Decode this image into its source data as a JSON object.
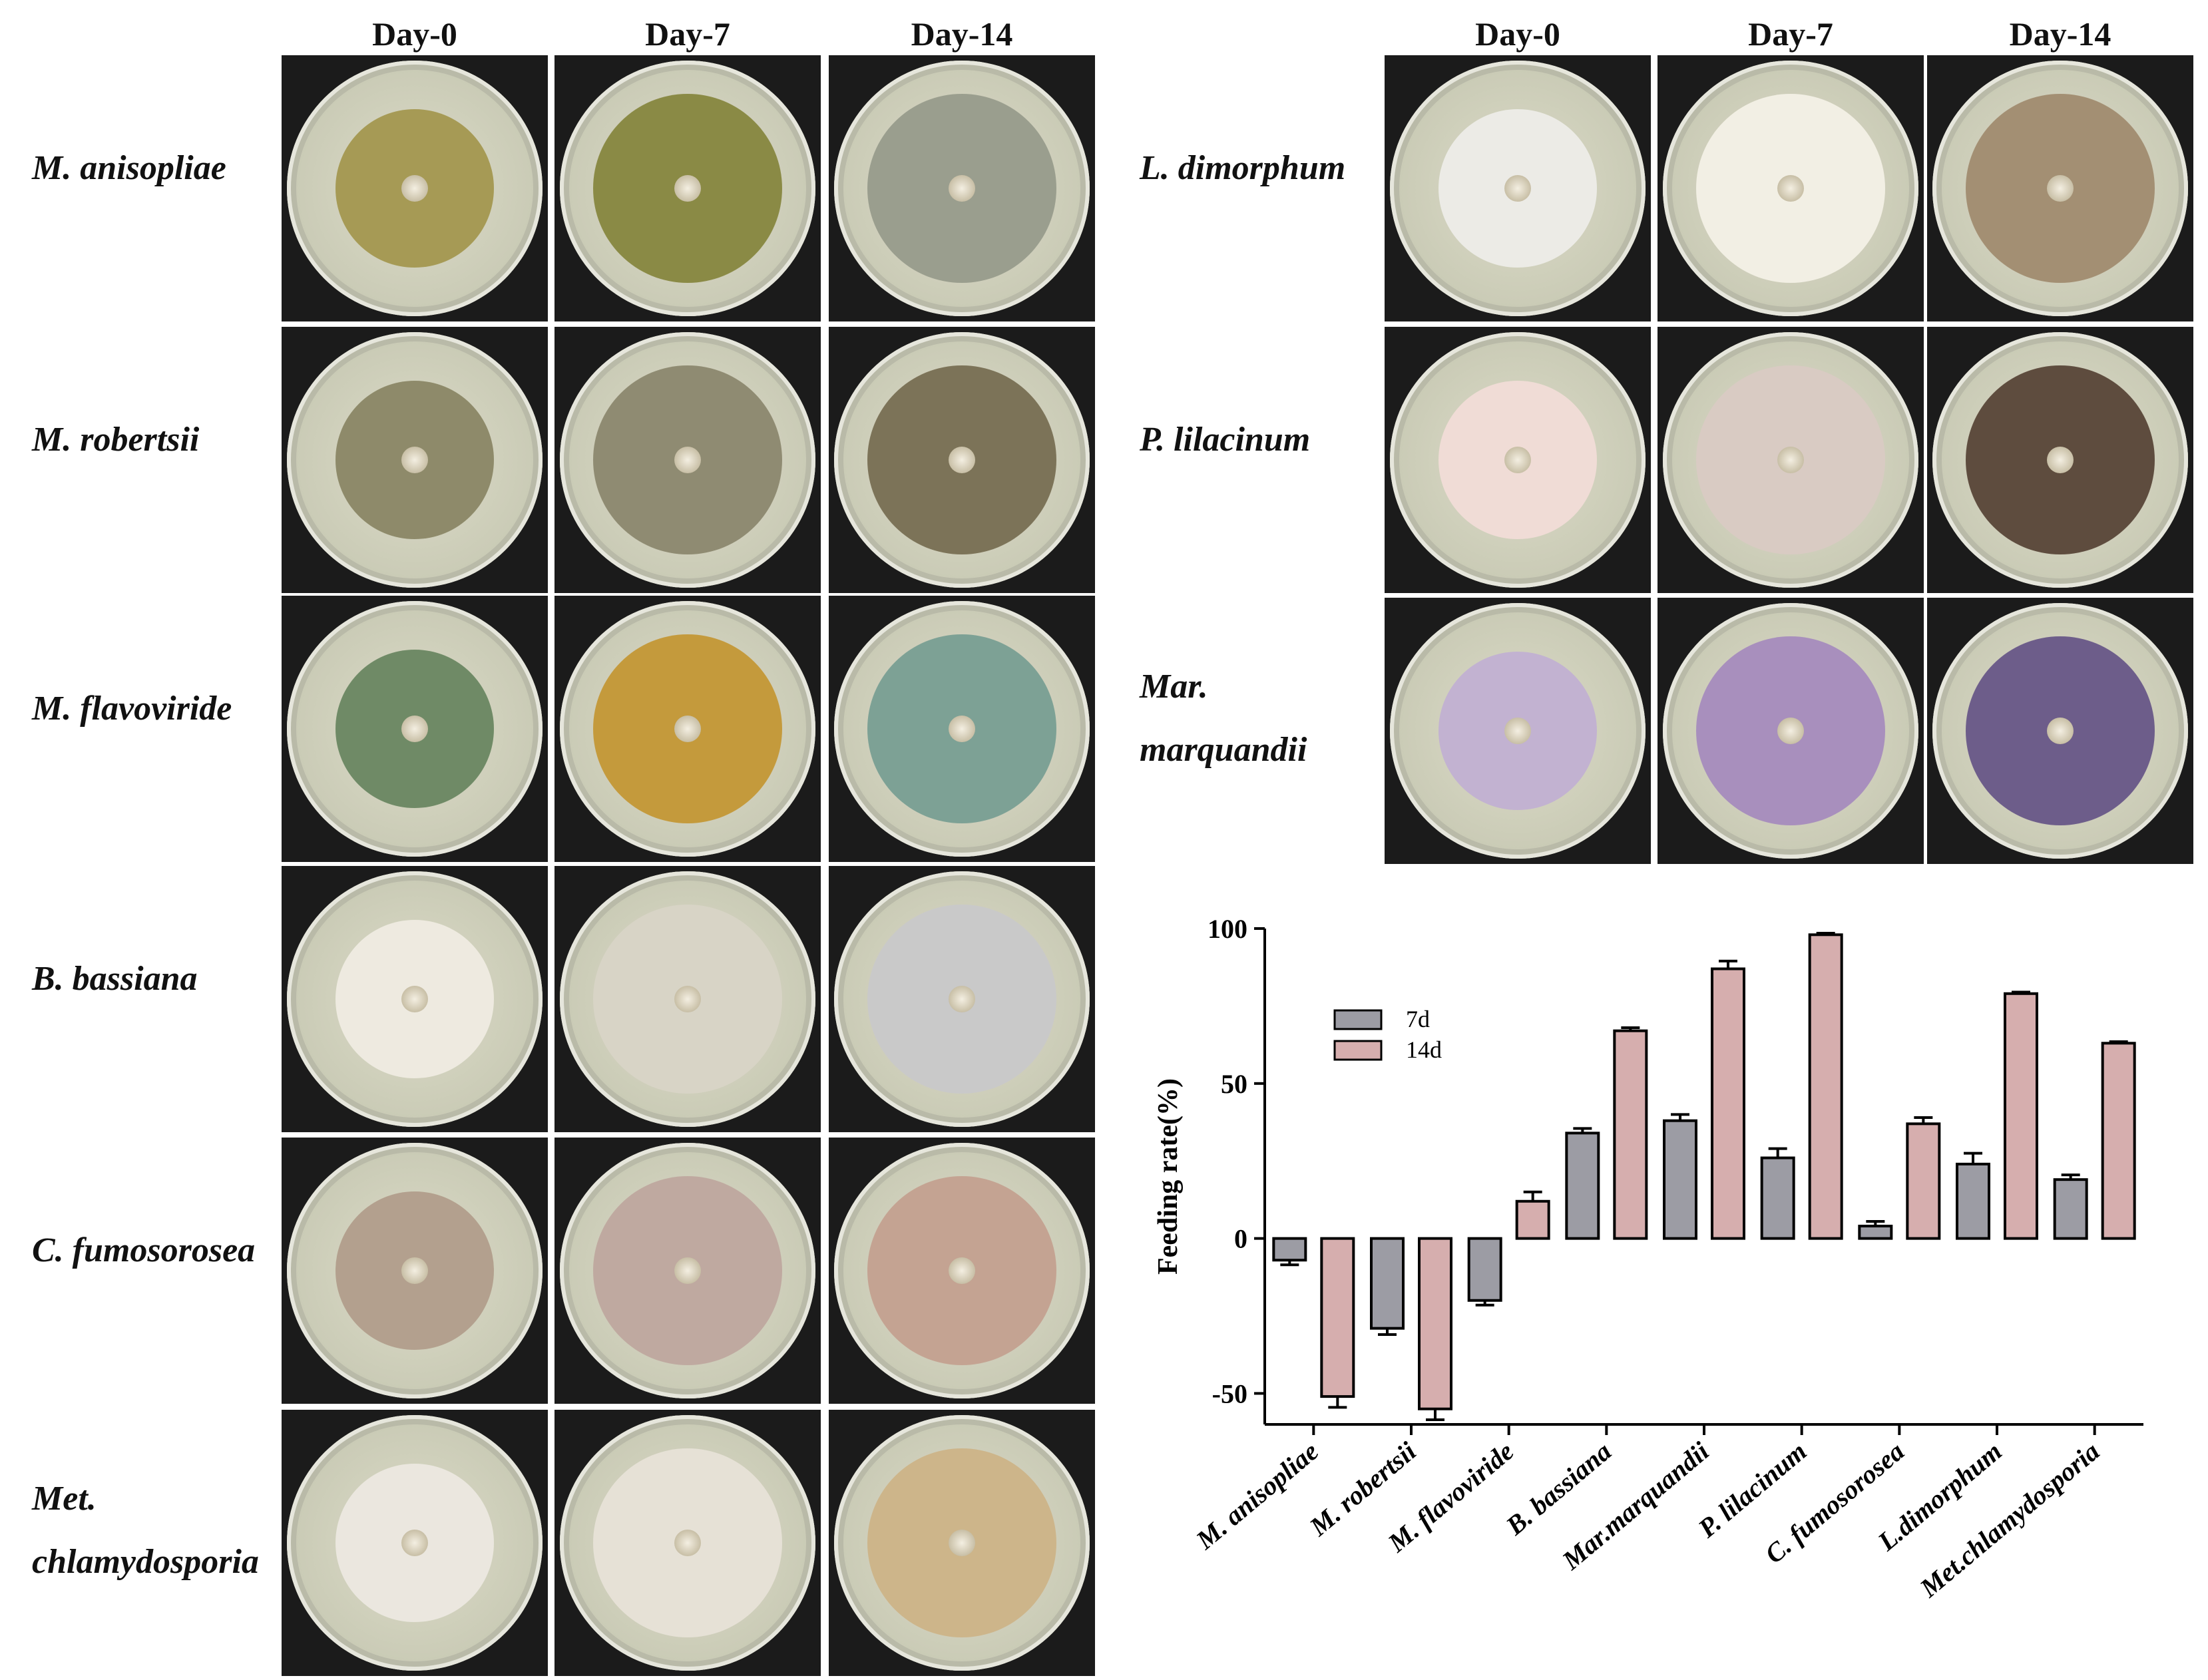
{
  "left_panel": {
    "column_headers": [
      "Day-0",
      "Day-7",
      "Day-14"
    ],
    "rows": [
      {
        "label": "M. anisopliae",
        "colors": [
          "#a69a55",
          "#8a8a45",
          "#9a9e8e"
        ]
      },
      {
        "label": "M. robertsii",
        "colors": [
          "#8e8a6a",
          "#8f8b72",
          "#7c7358"
        ]
      },
      {
        "label": "M. flavoviride",
        "colors": [
          "#6f8a66",
          "#c49a3c",
          "#7da195"
        ]
      },
      {
        "label": "B. bassiana",
        "colors": [
          "#eeeae0",
          "#d8d4c6",
          "#c9c9c9"
        ]
      },
      {
        "label": "C. fumosorosea",
        "colors": [
          "#b3a08e",
          "#bfa9a0",
          "#c4a392"
        ]
      },
      {
        "label_lines": [
          "Met.",
          "chlamydosporia"
        ],
        "colors": [
          "#ebe7df",
          "#e6e1d6",
          "#cdb58a"
        ]
      }
    ]
  },
  "right_panel": {
    "column_headers": [
      "Day-0",
      "Day-7",
      "Day-14"
    ],
    "rows": [
      {
        "label": "L. dimorphum",
        "colors": [
          "#ecebe6",
          "#f2efe4",
          "#a38f73"
        ]
      },
      {
        "label": "P. lilacinum",
        "colors": [
          "#f0dcd6",
          "#d9cbc3",
          "#5e4c3e"
        ]
      },
      {
        "label_lines": [
          "Mar.",
          "marquandii"
        ],
        "colors": [
          "#c2b2d1",
          "#a88fbd",
          "#6d5d8a"
        ]
      }
    ]
  },
  "chart_data": {
    "type": "bar",
    "categories": [
      "M. anisopliae",
      "M. robertsii",
      "M. flavoviride",
      "B. bassiana",
      "Mar.marquandii",
      "P. lilacinum",
      "C. fumosorosea",
      "L.dimorphum",
      "Met.chlamydosporia"
    ],
    "series": [
      {
        "name": "7d",
        "color": "#9c9ca4",
        "values": [
          -7,
          -29,
          -20,
          34,
          38,
          26,
          4,
          24,
          19
        ],
        "errors": [
          1.5,
          2,
          1.5,
          1.5,
          2,
          3,
          1.5,
          3.5,
          1.5
        ]
      },
      {
        "name": "14d",
        "color": "#d6aeae",
        "values": [
          -51,
          -55,
          12,
          67,
          87,
          98,
          37,
          79,
          63
        ],
        "errors": [
          3.5,
          3.5,
          3,
          1,
          2.5,
          0.5,
          2,
          0.5,
          0.5
        ]
      }
    ],
    "ylabel": "Feeding rate(%)",
    "xlabel": "",
    "ylim": [
      -60,
      100
    ],
    "yticks": [
      -50,
      0,
      50,
      100
    ],
    "ytick_labels": [
      "-50",
      "0",
      "50",
      "100"
    ],
    "legend_position": "top-left"
  }
}
